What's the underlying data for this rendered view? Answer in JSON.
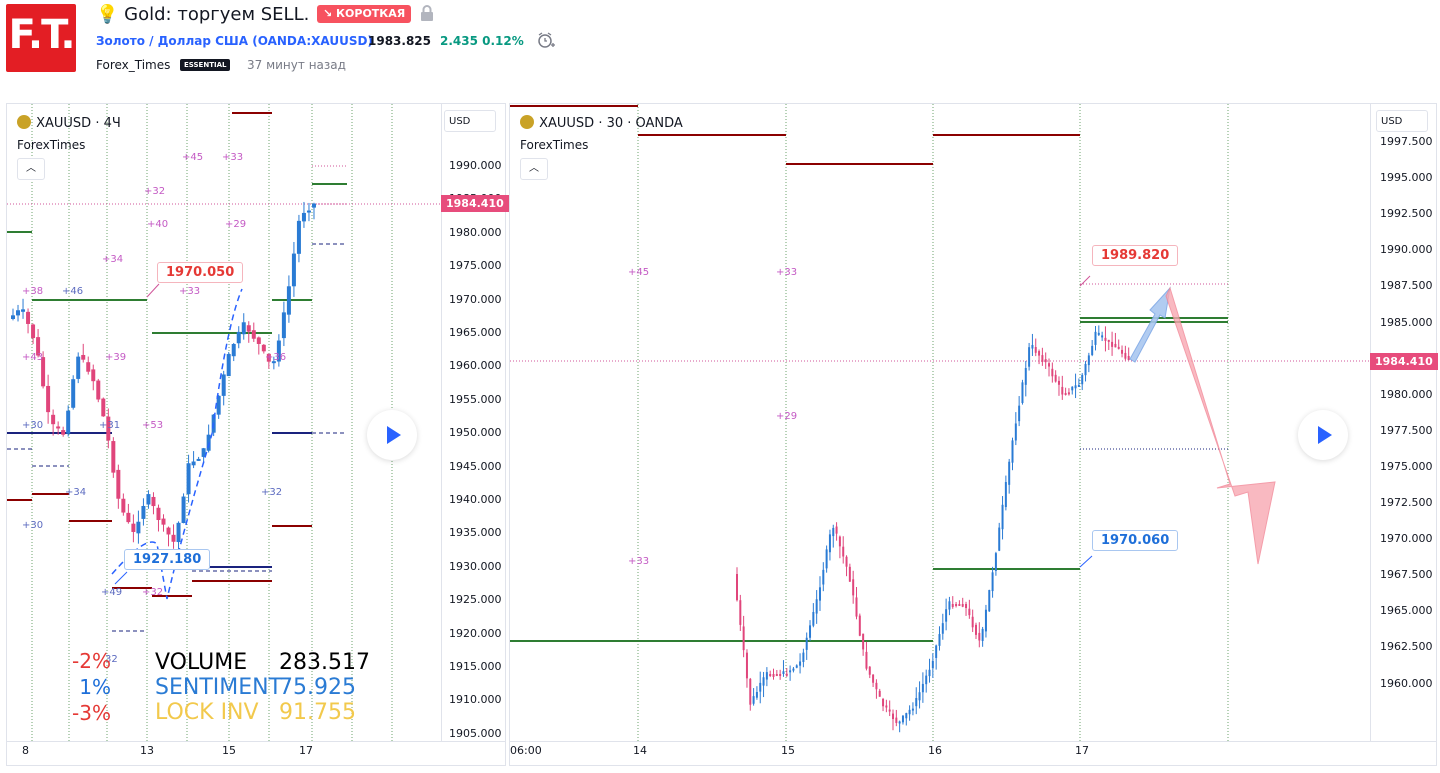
{
  "header": {
    "logo_text": "F.T.",
    "title": "Gold: торгуем SELL.",
    "badge": "↘ КОРОТКАЯ",
    "symbol_link": "Золото / Доллар США (OANDA:XAUUSD)",
    "price": "1983.825",
    "change": "2.435  0.12%",
    "author": "Forex_Times",
    "author_badge": "ESSENTIAL",
    "time_ago": "37 минут назад",
    "colors": {
      "short": "#f7525f",
      "up": "#089981",
      "link": "#2962ff"
    }
  },
  "left_chart": {
    "title": "XAUUSD · 4Ч",
    "subtitle": "ForexTimes",
    "currency": "USD",
    "last_price": "1984.410",
    "y_ticks": [
      "1990.000",
      "1985.000",
      "1980.000",
      "1975.000",
      "1970.000",
      "1965.000",
      "1960.000",
      "1955.000",
      "1950.000",
      "1945.000",
      "1940.000",
      "1935.000",
      "1930.000",
      "1925.000",
      "1920.000",
      "1915.000",
      "1910.000",
      "1905.000"
    ],
    "x_ticks": [
      "8",
      "13",
      "15",
      "17"
    ],
    "annotation_high": "1970.050",
    "annotation_low": "1927.180",
    "level_labels": [
      "+45",
      "+33",
      "+32",
      "+40",
      "+29",
      "+34",
      "+38",
      "+46",
      "+33",
      "+43",
      "+39",
      "+36",
      "+30",
      "+31",
      "+53",
      "+34",
      "+32",
      "+30",
      "+49",
      "+32",
      "32"
    ],
    "percent_labels": [
      {
        "text": "-2%",
        "color": "#e53935"
      },
      {
        "text": "1%",
        "color": "#1e6fd9"
      },
      {
        "text": "-3%",
        "color": "#e53935"
      }
    ],
    "stats": [
      {
        "label": "VOLUME",
        "value": "283.517",
        "color": "#000000"
      },
      {
        "label": "SENTIMENT",
        "value": "75.925",
        "color": "#2a7bd4"
      },
      {
        "label": "LOCK INV",
        "value": "91.755",
        "color": "#f2c94c"
      }
    ]
  },
  "right_chart": {
    "title": "XAUUSD · 30 · OANDA",
    "subtitle": "ForexTimes",
    "currency": "USD",
    "last_price": "1984.410",
    "y_ticks": [
      "1997.500",
      "1995.000",
      "1992.500",
      "1990.000",
      "1987.500",
      "1985.000",
      "1982.500",
      "1980.000",
      "1977.500",
      "1975.000",
      "1972.500",
      "1970.000",
      "1967.500",
      "1965.000",
      "1962.500",
      "1960.000"
    ],
    "x_ticks": [
      "06:00",
      "14",
      "15",
      "16",
      "17"
    ],
    "annotation_high": "1989.820",
    "annotation_low": "1970.060",
    "level_labels": [
      "+45",
      "+33",
      "+29",
      "+33"
    ]
  }
}
